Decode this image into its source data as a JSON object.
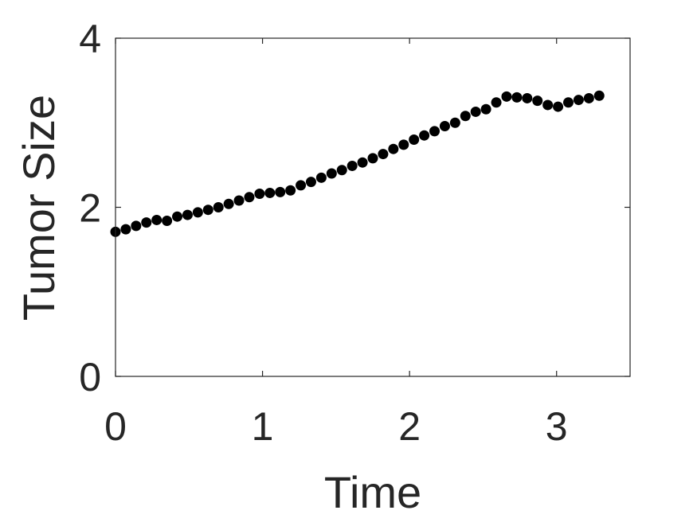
{
  "chart_data": {
    "type": "scatter",
    "title": "",
    "xlabel": "Time",
    "ylabel": "Tumor Size",
    "xlim": [
      0,
      3.5
    ],
    "ylim": [
      0,
      4
    ],
    "xticks": [
      0,
      1,
      2,
      3
    ],
    "xtick_labels": [
      "0",
      "1",
      "2",
      "3"
    ],
    "yticks": [
      0,
      2,
      4
    ],
    "ytick_labels": [
      "0",
      "2",
      "4"
    ],
    "grid": false,
    "legend": "none",
    "marker_color": "#000000",
    "series": [
      {
        "x": [
          0.0,
          0.07,
          0.14,
          0.21,
          0.28,
          0.35,
          0.42,
          0.49,
          0.56,
          0.63,
          0.7,
          0.77,
          0.84,
          0.91,
          0.98,
          1.05,
          1.12,
          1.19,
          1.26,
          1.33,
          1.4,
          1.47,
          1.54,
          1.61,
          1.68,
          1.75,
          1.82,
          1.89,
          1.96,
          2.03,
          2.1,
          2.17,
          2.24,
          2.31,
          2.38,
          2.45,
          2.52,
          2.59,
          2.66,
          2.73,
          2.8,
          2.87,
          2.94,
          3.01,
          3.08,
          3.15,
          3.22,
          3.29
        ],
        "y": [
          1.71,
          1.74,
          1.78,
          1.82,
          1.85,
          1.84,
          1.89,
          1.91,
          1.94,
          1.97,
          2.0,
          2.04,
          2.08,
          2.12,
          2.16,
          2.17,
          2.18,
          2.2,
          2.26,
          2.3,
          2.35,
          2.4,
          2.44,
          2.49,
          2.53,
          2.58,
          2.63,
          2.69,
          2.74,
          2.8,
          2.85,
          2.9,
          2.96,
          3.0,
          3.08,
          3.13,
          3.16,
          3.24,
          3.31,
          3.3,
          3.29,
          3.26,
          3.21,
          3.19,
          3.24,
          3.27,
          3.29,
          3.32
        ]
      }
    ]
  }
}
